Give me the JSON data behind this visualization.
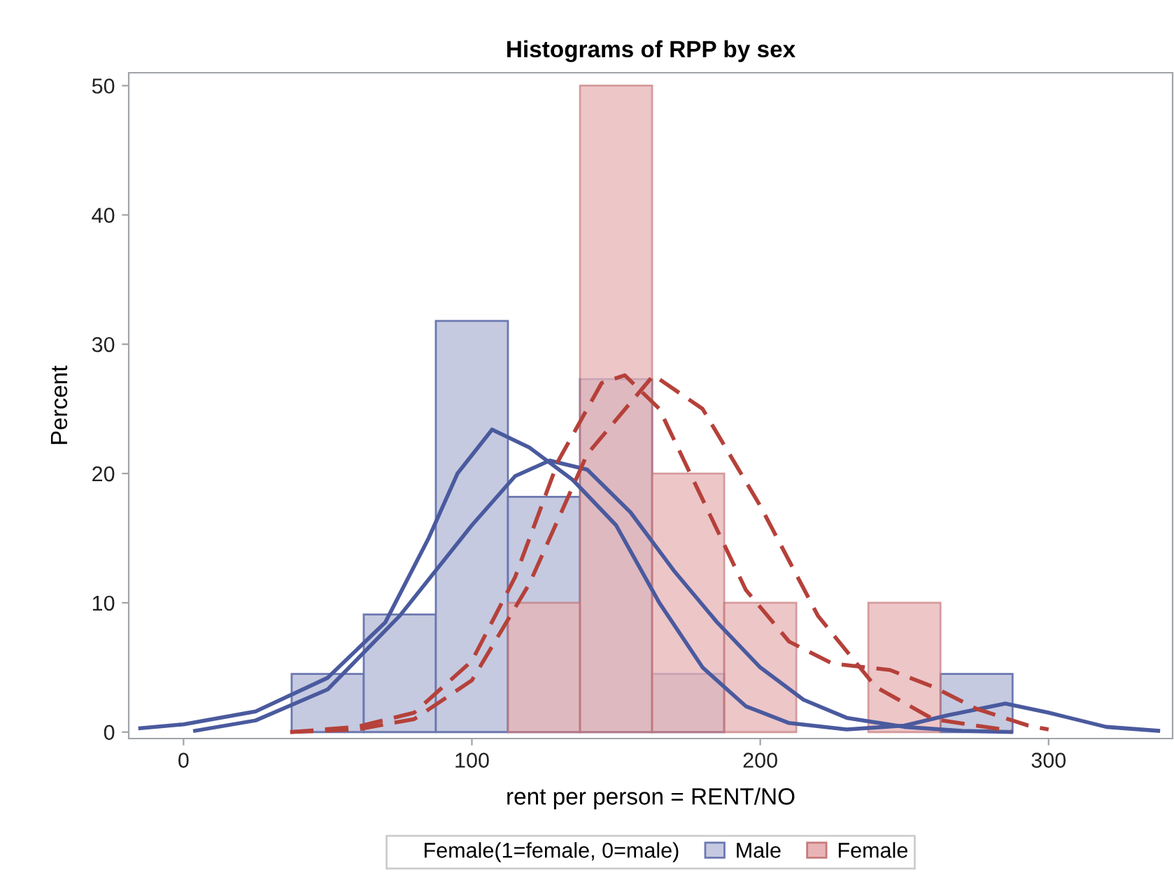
{
  "chart_data": {
    "type": "histogram",
    "title": "Histograms of RPP by sex",
    "xlabel": "rent per person = RENT/NO",
    "ylabel": "Percent",
    "legend_title": "Female(1=female, 0=male)",
    "bins": [
      37.5,
      62.5,
      87.5,
      112.5,
      137.5,
      162.5,
      187.5,
      212.5,
      237.5,
      262.5,
      287.5
    ],
    "series": [
      {
        "name": "Male",
        "color": "#c5cae0",
        "values": [
          4.5,
          9.1,
          31.8,
          18.2,
          27.3,
          4.5,
          0,
          0,
          0,
          4.5
        ]
      },
      {
        "name": "Female",
        "color": "#e8b4b6",
        "values": [
          0,
          0,
          0,
          10,
          50,
          20,
          10,
          0,
          10,
          0
        ]
      },
      {
        "type": "line",
        "color": "#4a5a9e",
        "line_style": "solid",
        "x": [
          -15,
          0,
          25,
          50,
          70,
          85,
          95,
          107,
          120,
          135,
          150,
          165,
          180,
          195,
          210,
          230,
          250,
          265,
          285,
          300,
          320,
          338
        ],
        "values": [
          0.3,
          0.6,
          1.6,
          4.2,
          8.5,
          15,
          20,
          23.4,
          22,
          19.5,
          16,
          10,
          5,
          2,
          0.7,
          0.2,
          0.5,
          1.3,
          2.2,
          1.5,
          0.4,
          0.1
        ]
      },
      {
        "type": "line",
        "color": "#4a5a9e",
        "line_style": "solid",
        "x": [
          4,
          25,
          50,
          75,
          100,
          115,
          127,
          140,
          155,
          170,
          185,
          200,
          215,
          230,
          250,
          270,
          287
        ],
        "values": [
          0.1,
          0.9,
          3.3,
          9,
          16,
          19.8,
          21,
          20.3,
          17,
          12.5,
          8.5,
          5,
          2.5,
          1.1,
          0.4,
          0.1,
          0
        ]
      },
      {
        "type": "line",
        "color": "#b5413a",
        "line_style": "dashed",
        "x": [
          37,
          60,
          80,
          100,
          120,
          140,
          163,
          180,
          200,
          220,
          240,
          260,
          287
        ],
        "values": [
          0,
          0.2,
          1,
          4,
          11.5,
          21.5,
          27.6,
          25,
          17.5,
          9,
          3.5,
          1,
          0.1
        ]
      },
      {
        "type": "line",
        "color": "#b5413a",
        "line_style": "dashed",
        "x": [
          37,
          60,
          80,
          100,
          115,
          130,
          145,
          153,
          165,
          180,
          195,
          210,
          225,
          245,
          260,
          275,
          293,
          300
        ],
        "values": [
          0,
          0.4,
          1.5,
          5.5,
          12,
          21,
          27,
          27.6,
          25,
          18,
          11,
          7,
          5.3,
          4.8,
          3.5,
          1.8,
          0.5,
          0.2
        ]
      }
    ],
    "xlim": [
      -19,
      343
    ],
    "xticks": [
      0,
      100,
      200,
      300
    ],
    "ylim": [
      -0.5,
      51
    ],
    "yticks": [
      0,
      10,
      20,
      30,
      40,
      50
    ],
    "grid": false,
    "legend": "bottom"
  }
}
